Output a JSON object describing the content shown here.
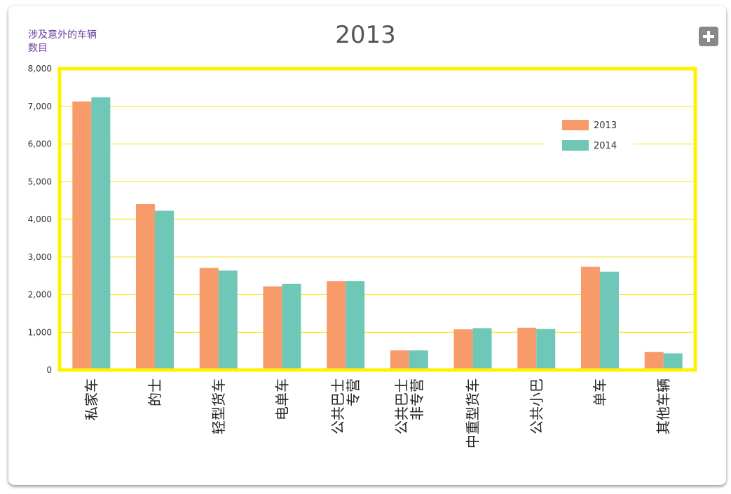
{
  "chart_data": {
    "type": "bar",
    "title": "2013",
    "ylabel": "涉及意外的车辆数目",
    "ylim": [
      0,
      8000
    ],
    "yticks": [
      "0",
      "1,000",
      "2,000",
      "3,000",
      "4,000",
      "5,000",
      "6,000",
      "7,000",
      "8,000"
    ],
    "categories": [
      [
        "私家车"
      ],
      [
        "的士"
      ],
      [
        "轻型货车"
      ],
      [
        "电单车"
      ],
      [
        "专营",
        "公共巴士"
      ],
      [
        "非专营",
        "公共巴士"
      ],
      [
        "中重型货车"
      ],
      [
        "公共小巴"
      ],
      [
        "单车"
      ],
      [
        "其他车辆"
      ]
    ],
    "series": [
      {
        "name": "2013",
        "color": "#f79b6b",
        "values": [
          7130,
          4410,
          2710,
          2220,
          2360,
          520,
          1080,
          1120,
          2740,
          480
        ]
      },
      {
        "name": "2014",
        "color": "#6fc8b7",
        "values": [
          7240,
          4230,
          2640,
          2290,
          2360,
          520,
          1110,
          1090,
          2610,
          440
        ]
      }
    ],
    "grid": true,
    "grid_color": "#f5e600",
    "frame_color": "#fff200",
    "legend_position": "top-right"
  },
  "expand_icon": "plus-icon"
}
